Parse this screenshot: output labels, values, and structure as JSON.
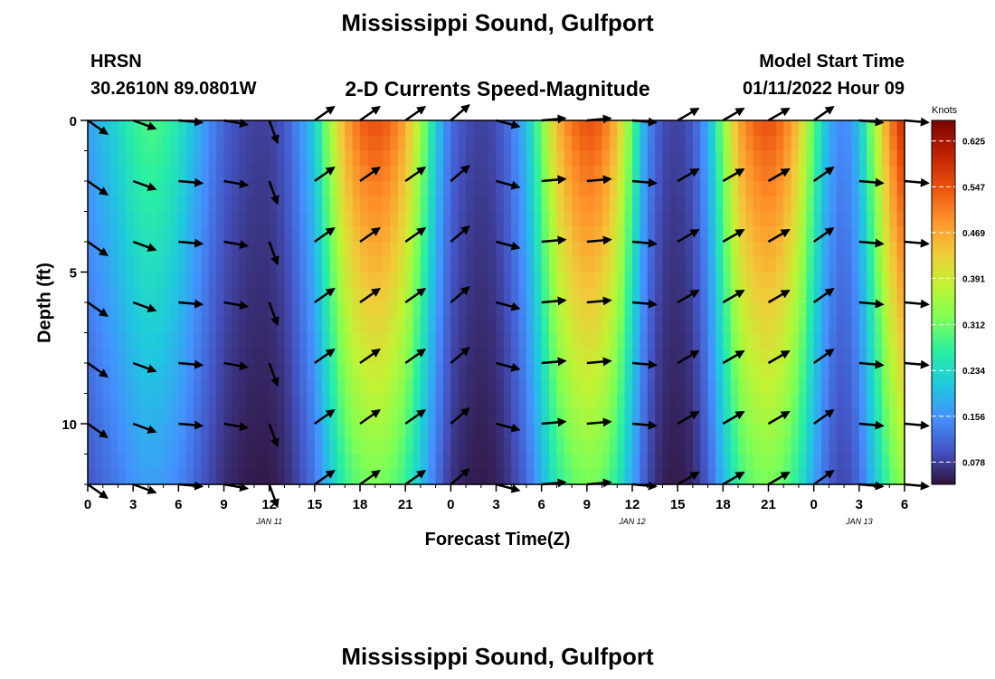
{
  "page": {
    "title": "Mississippi Sound, Gulfport",
    "footer_title": "Mississippi Sound, Gulfport"
  },
  "header": {
    "station": "HRSN",
    "coords": "30.2610N  89.0801W",
    "subtitle": "2-D Currents Speed-Magnitude",
    "model_label": "Model Start Time",
    "model_value": "01/11/2022 Hour 09"
  },
  "chart_data": {
    "type": "heatmap",
    "title": "2-D Currents Speed-Magnitude",
    "xlabel": "Forecast Time(Z)",
    "ylabel": "Depth (ft)",
    "x_range_hours": [
      0,
      54
    ],
    "y_range_ft": [
      0,
      12
    ],
    "x_ticks": [
      {
        "h": 0,
        "label": "0"
      },
      {
        "h": 3,
        "label": "3"
      },
      {
        "h": 6,
        "label": "6"
      },
      {
        "h": 9,
        "label": "9"
      },
      {
        "h": 12,
        "label": "12"
      },
      {
        "h": 15,
        "label": "15"
      },
      {
        "h": 18,
        "label": "18"
      },
      {
        "h": 21,
        "label": "21"
      },
      {
        "h": 24,
        "label": "0"
      },
      {
        "h": 27,
        "label": "3"
      },
      {
        "h": 30,
        "label": "6"
      },
      {
        "h": 33,
        "label": "9"
      },
      {
        "h": 36,
        "label": "12"
      },
      {
        "h": 39,
        "label": "15"
      },
      {
        "h": 42,
        "label": "18"
      },
      {
        "h": 45,
        "label": "21"
      },
      {
        "h": 48,
        "label": "0"
      },
      {
        "h": 51,
        "label": "3"
      },
      {
        "h": 54,
        "label": "6"
      }
    ],
    "y_ticks": [
      {
        "d": 0,
        "label": "0"
      },
      {
        "d": 5,
        "label": "5"
      },
      {
        "d": 10,
        "label": "10"
      }
    ],
    "date_labels": [
      {
        "h": 12,
        "label": "JAN 11"
      },
      {
        "h": 36,
        "label": "JAN 12"
      },
      {
        "h": 51,
        "label": "JAN 13"
      }
    ],
    "colorbar": {
      "unit": "Knots",
      "min": 0.04,
      "max": 0.66,
      "ticks": [
        0.625,
        0.547,
        0.469,
        0.391,
        0.312,
        0.234,
        0.156,
        0.078
      ],
      "colors": [
        "#30123b",
        "#4454c4",
        "#4490fe",
        "#1fc8de",
        "#29efa2",
        "#7dff56",
        "#c1f334",
        "#f1ca3a",
        "#fe922a",
        "#ea4f0d",
        "#be2102",
        "#7a0403"
      ]
    },
    "speed_profile": {
      "hours": [
        0,
        1,
        2,
        3,
        4,
        5,
        6,
        7,
        8,
        9,
        10,
        11,
        12,
        13,
        14,
        15,
        16,
        17,
        18,
        19,
        20,
        21,
        22,
        23,
        24,
        25,
        26,
        27,
        28,
        29,
        30,
        31,
        32,
        33,
        34,
        35,
        36,
        37,
        38,
        39,
        40,
        41,
        42,
        43,
        44,
        45,
        46,
        47,
        48,
        49,
        50,
        51,
        52,
        53,
        54
      ],
      "surface_knots": [
        0.17,
        0.2,
        0.23,
        0.27,
        0.29,
        0.28,
        0.25,
        0.2,
        0.15,
        0.11,
        0.09,
        0.08,
        0.08,
        0.1,
        0.15,
        0.22,
        0.35,
        0.47,
        0.53,
        0.55,
        0.53,
        0.47,
        0.35,
        0.22,
        0.12,
        0.09,
        0.08,
        0.09,
        0.13,
        0.2,
        0.32,
        0.45,
        0.52,
        0.55,
        0.53,
        0.45,
        0.3,
        0.15,
        0.09,
        0.08,
        0.1,
        0.18,
        0.33,
        0.47,
        0.53,
        0.55,
        0.52,
        0.44,
        0.3,
        0.18,
        0.14,
        0.2,
        0.35,
        0.5,
        0.6
      ]
    },
    "arrow_depths_ft": [
      0,
      2,
      4,
      6,
      8,
      10,
      12
    ],
    "arrow_hours": [
      0,
      3,
      6,
      9,
      12,
      15,
      18,
      21,
      24,
      27,
      30,
      33,
      36,
      39,
      42,
      45,
      48,
      51,
      54
    ],
    "arrow_directions_deg": [
      -35,
      -20,
      -5,
      -10,
      -70,
      35,
      35,
      35,
      40,
      -15,
      5,
      5,
      -5,
      30,
      30,
      30,
      35,
      -5,
      -5
    ]
  }
}
